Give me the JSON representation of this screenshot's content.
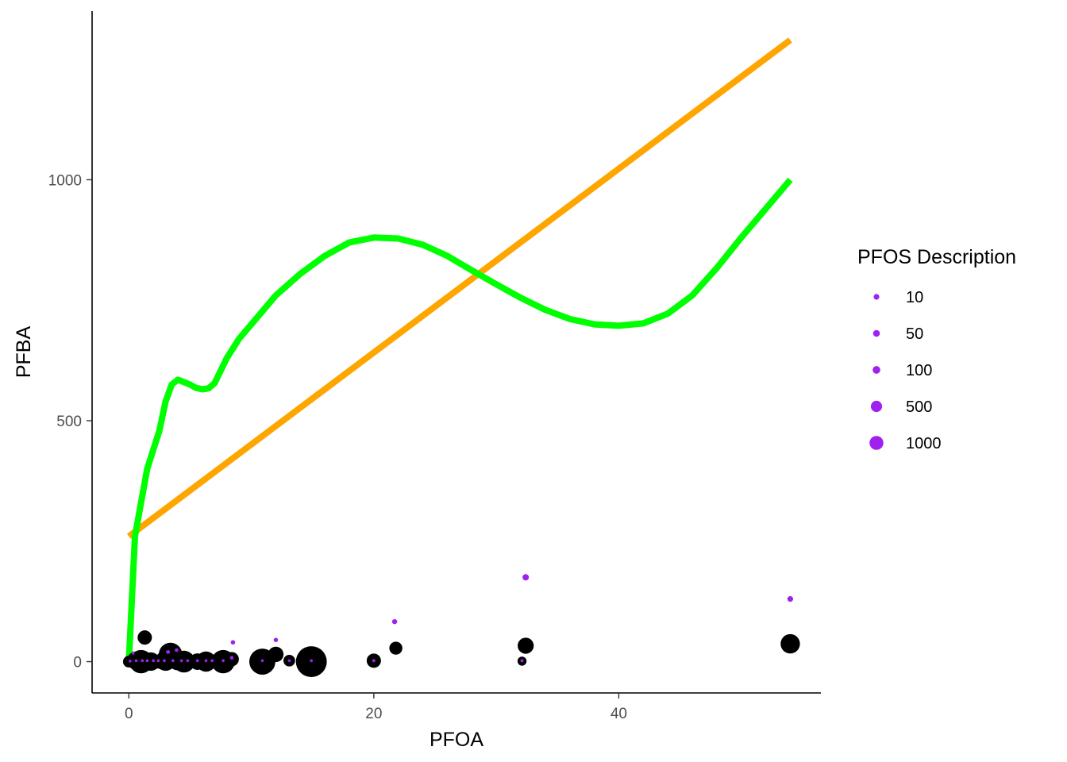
{
  "chart_data": {
    "type": "scatter",
    "xlabel": "PFOA",
    "ylabel": "PFBA",
    "xlim": [
      -3,
      56.5
    ],
    "ylim": [
      -65,
      1350
    ],
    "x_ticks": [
      0,
      20,
      40
    ],
    "y_ticks": [
      0,
      500,
      1000
    ],
    "x_tick_labels": [
      "0",
      "20",
      "40"
    ],
    "y_tick_labels": [
      "0",
      "500",
      "1000"
    ],
    "grid": false,
    "legend": {
      "title": "PFOS Description",
      "placement": "right",
      "color": "#a020f0",
      "entries": [
        {
          "label": "10",
          "value": 10
        },
        {
          "label": "50",
          "value": 50
        },
        {
          "label": "100",
          "value": 100
        },
        {
          "label": "500",
          "value": 500
        },
        {
          "label": "1000",
          "value": 1000
        }
      ]
    },
    "colors": {
      "linear_fit": "#ffa500",
      "poly_fit": "#00ff00",
      "black_points": "#000000",
      "purple_points": "#a020f0"
    },
    "series": [
      {
        "kind": "line",
        "color": "#ffa500",
        "x": [
          0,
          54
        ],
        "y": [
          260,
          1290
        ]
      },
      {
        "kind": "line",
        "color": "#00ff00",
        "x": [
          0,
          0.5,
          1.5,
          2.5,
          3,
          3.5,
          4,
          4.5,
          5,
          5.5,
          6,
          6.5,
          7,
          8,
          9,
          10,
          12,
          14,
          16,
          18,
          20,
          22,
          24,
          26,
          28,
          30,
          32,
          34,
          36,
          38,
          40,
          42,
          44,
          46,
          48,
          50,
          52,
          54
        ],
        "y": [
          0,
          260,
          400,
          480,
          540,
          575,
          585,
          580,
          575,
          568,
          565,
          567,
          578,
          630,
          670,
          700,
          760,
          805,
          842,
          870,
          880,
          878,
          865,
          842,
          812,
          783,
          755,
          730,
          711,
          700,
          697,
          702,
          722,
          760,
          817,
          880,
          940,
          1000
        ]
      },
      {
        "kind": "points",
        "color": "#000000",
        "points": [
          {
            "x": 0,
            "y": 0,
            "size": 200
          },
          {
            "x": 0.6,
            "y": 2,
            "size": 500
          },
          {
            "x": 1,
            "y": 0,
            "size": 800
          },
          {
            "x": 1.3,
            "y": 50,
            "size": 300
          },
          {
            "x": 1.8,
            "y": 0,
            "size": 500
          },
          {
            "x": 2.5,
            "y": 0,
            "size": 300
          },
          {
            "x": 3,
            "y": 2,
            "size": 600
          },
          {
            "x": 3.4,
            "y": 15,
            "size": 800
          },
          {
            "x": 4,
            "y": 3,
            "size": 600
          },
          {
            "x": 4.5,
            "y": 0,
            "size": 700
          },
          {
            "x": 5,
            "y": 0,
            "size": 300
          },
          {
            "x": 5.6,
            "y": 0,
            "size": 400
          },
          {
            "x": 6.3,
            "y": 0,
            "size": 600
          },
          {
            "x": 7,
            "y": 0,
            "size": 300
          },
          {
            "x": 7.7,
            "y": 0,
            "size": 800
          },
          {
            "x": 8.4,
            "y": 5,
            "size": 300
          },
          {
            "x": 10.9,
            "y": 0,
            "size": 1000
          },
          {
            "x": 12,
            "y": 15,
            "size": 350
          },
          {
            "x": 13.1,
            "y": 2,
            "size": 200
          },
          {
            "x": 14.9,
            "y": 0,
            "size": 1400
          },
          {
            "x": 20,
            "y": 2,
            "size": 300
          },
          {
            "x": 21.8,
            "y": 28,
            "size": 250
          },
          {
            "x": 32.1,
            "y": 1,
            "size": 120
          },
          {
            "x": 32.4,
            "y": 33,
            "size": 380
          },
          {
            "x": 54,
            "y": 37,
            "size": 550
          }
        ]
      },
      {
        "kind": "points",
        "color": "#a020f0",
        "points": [
          {
            "x": 0.1,
            "y": 1,
            "size": 12
          },
          {
            "x": 0.35,
            "y": 18,
            "size": 14
          },
          {
            "x": 0.6,
            "y": 2,
            "size": 12
          },
          {
            "x": 1.1,
            "y": 2,
            "size": 12
          },
          {
            "x": 1.5,
            "y": 2,
            "size": 12
          },
          {
            "x": 2,
            "y": 2,
            "size": 12
          },
          {
            "x": 2.4,
            "y": 2,
            "size": 12
          },
          {
            "x": 2.9,
            "y": 2,
            "size": 12
          },
          {
            "x": 3.2,
            "y": 20,
            "size": 22
          },
          {
            "x": 3.6,
            "y": 2,
            "size": 12
          },
          {
            "x": 3.9,
            "y": 24,
            "size": 20
          },
          {
            "x": 4.3,
            "y": 2,
            "size": 12
          },
          {
            "x": 4.8,
            "y": 2,
            "size": 12
          },
          {
            "x": 5.6,
            "y": 2,
            "size": 12
          },
          {
            "x": 6.3,
            "y": 2,
            "size": 12
          },
          {
            "x": 6.8,
            "y": 2,
            "size": 12
          },
          {
            "x": 7.7,
            "y": 2,
            "size": 12
          },
          {
            "x": 8.4,
            "y": 8,
            "size": 20
          },
          {
            "x": 8.5,
            "y": 40,
            "size": 28
          },
          {
            "x": 10.9,
            "y": 2,
            "size": 12
          },
          {
            "x": 12,
            "y": 45,
            "size": 28
          },
          {
            "x": 13.1,
            "y": 2,
            "size": 12
          },
          {
            "x": 14.9,
            "y": 2,
            "size": 12
          },
          {
            "x": 20,
            "y": 2,
            "size": 14
          },
          {
            "x": 21.7,
            "y": 83,
            "size": 38
          },
          {
            "x": 32.1,
            "y": 2,
            "size": 14
          },
          {
            "x": 32.4,
            "y": 175,
            "size": 60
          },
          {
            "x": 54,
            "y": 130,
            "size": 48
          }
        ]
      }
    ]
  }
}
